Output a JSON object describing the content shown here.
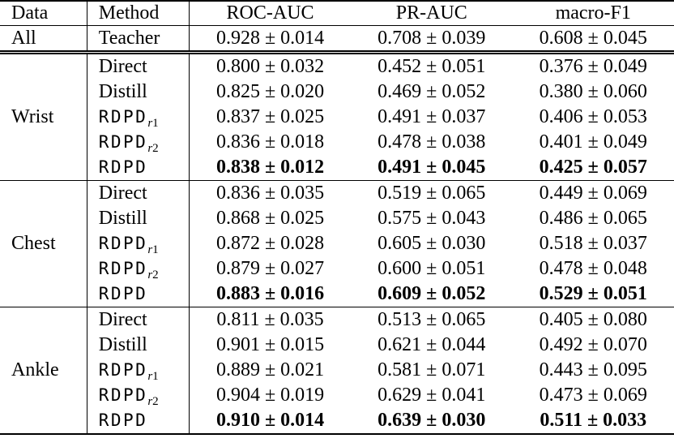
{
  "colors": {
    "text": "#000000",
    "background": "#ffffff"
  },
  "table": {
    "headers": [
      "Data",
      "Method",
      "ROC-AUC",
      "PR-AUC",
      "macro-F1"
    ],
    "teacher": {
      "data": "All",
      "method": "Teacher",
      "values": [
        "0.928 ± 0.014",
        "0.708 ± 0.039",
        "0.608 ± 0.045"
      ]
    },
    "groups": [
      {
        "data": "Wrist",
        "rows": [
          {
            "method": "Direct",
            "mono": false,
            "method_sub": "",
            "bold": false,
            "values": [
              "0.800 ± 0.032",
              "0.452 ± 0.051",
              "0.376 ± 0.049"
            ]
          },
          {
            "method": "Distill",
            "mono": false,
            "method_sub": "",
            "bold": false,
            "values": [
              "0.825 ± 0.020",
              "0.469 ± 0.052",
              "0.380 ± 0.060"
            ]
          },
          {
            "method": "RDPD",
            "mono": true,
            "method_sub": "r1",
            "bold": false,
            "values": [
              "0.837 ± 0.025",
              "0.491 ± 0.037",
              "0.406 ± 0.053"
            ]
          },
          {
            "method": "RDPD",
            "mono": true,
            "method_sub": "r2",
            "bold": false,
            "values": [
              "0.836 ± 0.018",
              "0.478 ± 0.038",
              "0.401 ± 0.049"
            ]
          },
          {
            "method": "RDPD",
            "mono": true,
            "method_sub": "",
            "bold": true,
            "values": [
              "0.838 ± 0.012",
              "0.491 ± 0.045",
              "0.425 ± 0.057"
            ]
          }
        ]
      },
      {
        "data": "Chest",
        "rows": [
          {
            "method": "Direct",
            "mono": false,
            "method_sub": "",
            "bold": false,
            "values": [
              "0.836 ± 0.035",
              "0.519 ± 0.065",
              "0.449 ± 0.069"
            ]
          },
          {
            "method": "Distill",
            "mono": false,
            "method_sub": "",
            "bold": false,
            "values": [
              "0.868 ± 0.025",
              "0.575 ± 0.043",
              "0.486 ± 0.065"
            ]
          },
          {
            "method": "RDPD",
            "mono": true,
            "method_sub": "r1",
            "bold": false,
            "values": [
              "0.872 ± 0.028",
              "0.605 ± 0.030",
              "0.518 ± 0.037"
            ]
          },
          {
            "method": "RDPD",
            "mono": true,
            "method_sub": "r2",
            "bold": false,
            "values": [
              "0.879 ± 0.027",
              "0.600 ± 0.051",
              "0.478 ± 0.048"
            ]
          },
          {
            "method": "RDPD",
            "mono": true,
            "method_sub": "",
            "bold": true,
            "values": [
              "0.883 ± 0.016",
              "0.609 ± 0.052",
              "0.529 ± 0.051"
            ]
          }
        ]
      },
      {
        "data": "Ankle",
        "rows": [
          {
            "method": "Direct",
            "mono": false,
            "method_sub": "",
            "bold": false,
            "values": [
              "0.811 ± 0.035",
              "0.513 ± 0.065",
              "0.405 ± 0.080"
            ]
          },
          {
            "method": "Distill",
            "mono": false,
            "method_sub": "",
            "bold": false,
            "values": [
              "0.901 ± 0.015",
              "0.621 ± 0.044",
              "0.492 ± 0.070"
            ]
          },
          {
            "method": "RDPD",
            "mono": true,
            "method_sub": "r1",
            "bold": false,
            "values": [
              "0.889 ± 0.021",
              "0.581 ± 0.071",
              "0.443 ± 0.095"
            ]
          },
          {
            "method": "RDPD",
            "mono": true,
            "method_sub": "r2",
            "bold": false,
            "values": [
              "0.904 ± 0.019",
              "0.629 ± 0.041",
              "0.473 ± 0.069"
            ]
          },
          {
            "method": "RDPD",
            "mono": true,
            "method_sub": "",
            "bold": true,
            "values": [
              "0.910 ± 0.014",
              "0.639 ± 0.030",
              "0.511 ± 0.033"
            ]
          }
        ]
      }
    ]
  }
}
